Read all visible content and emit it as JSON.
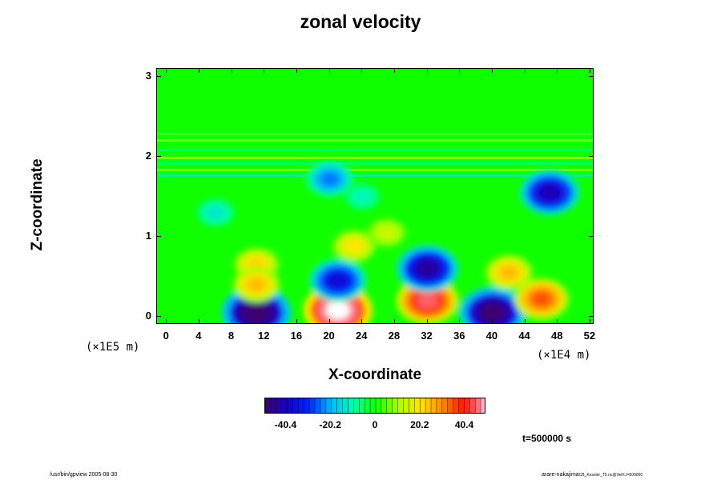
{
  "chart_data": {
    "type": "heatmap",
    "title": "zonal velocity",
    "xlabel": "X-coordinate",
    "ylabel": "Z-coordinate",
    "x_scale_note": "(×1E4 m)",
    "y_scale_note": "(×1E5 m)",
    "xlim": [
      -1.2,
      52.5
    ],
    "ylim": [
      -0.1,
      3.1
    ],
    "x_ticks": [
      "0",
      "4",
      "8",
      "12",
      "16",
      "20",
      "24",
      "28",
      "32",
      "36",
      "40",
      "44",
      "48",
      "52"
    ],
    "y_ticks": [
      "0",
      "1",
      "2",
      "3"
    ],
    "colorbar": {
      "ticks": [
        "-40.4",
        "-20.2",
        "0",
        "20.2",
        "40.4"
      ],
      "range": [
        -50,
        50
      ]
    },
    "features": [
      {
        "x": 11,
        "z": 0.05,
        "value": -55
      },
      {
        "x": 21,
        "z": 0.08,
        "value": 55
      },
      {
        "x": 32,
        "z": 0.2,
        "value": 45
      },
      {
        "x": 40,
        "z": 0.05,
        "value": -52
      },
      {
        "x": 32,
        "z": 0.6,
        "value": -45
      },
      {
        "x": 21,
        "z": 0.45,
        "value": -38
      },
      {
        "x": 47,
        "z": 1.55,
        "value": -42
      },
      {
        "x": 20,
        "z": 1.72,
        "value": -25
      },
      {
        "x": 11,
        "z": 0.65,
        "value": 22
      },
      {
        "x": 11,
        "z": 0.4,
        "value": 25
      },
      {
        "x": 23,
        "z": 0.88,
        "value": 20
      },
      {
        "x": 42,
        "z": 0.55,
        "value": 25
      },
      {
        "x": 46,
        "z": 0.22,
        "value": 35
      },
      {
        "x": 27,
        "z": 1.05,
        "value": 14
      },
      {
        "x": 6,
        "z": 1.3,
        "value": -14
      },
      {
        "x": 24,
        "z": 1.5,
        "value": -12
      }
    ]
  },
  "time_label": "t=500000 s",
  "footer_left": "/usr/bin/gpview 2005-08-30",
  "footer_right": "arare-nakajima",
  "footer_right_sub": "CB_Kessler_T5.nc@VelX,t=500000"
}
